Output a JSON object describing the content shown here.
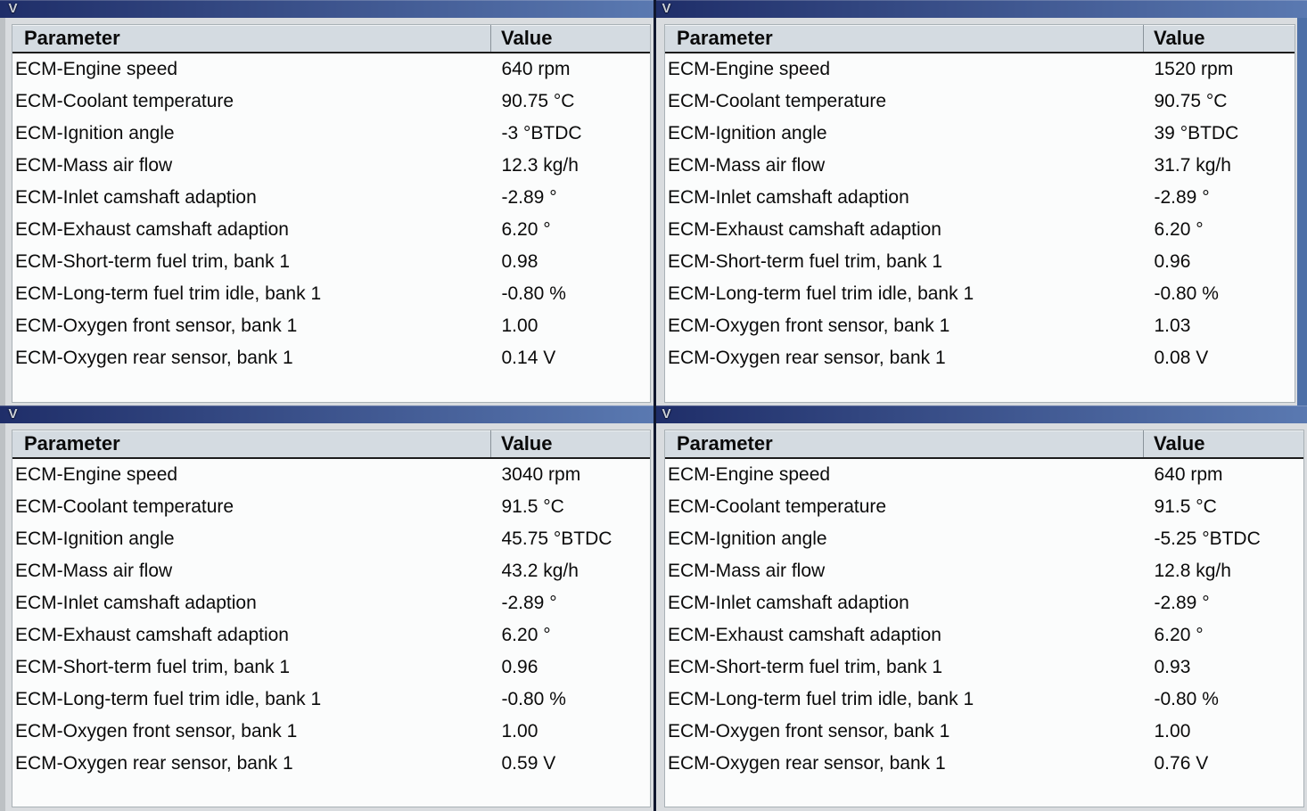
{
  "window": {
    "icon_glyph": "V"
  },
  "table": {
    "columns": {
      "parameter": "Parameter",
      "value": "Value"
    },
    "parameters": [
      "ECM-Engine speed",
      "ECM-Coolant temperature",
      "ECM-Ignition angle",
      "ECM-Mass air flow",
      "ECM-Inlet camshaft adaption",
      "ECM-Exhaust camshaft adaption",
      "ECM-Short-term fuel trim, bank 1",
      "ECM-Long-term fuel trim idle, bank 1",
      "ECM-Oxygen front sensor, bank 1",
      "ECM-Oxygen rear sensor, bank 1"
    ]
  },
  "panels": [
    {
      "name": "top-left",
      "values": [
        "640 rpm",
        "90.75 °C",
        "-3 °BTDC",
        "12.3 kg/h",
        "-2.89 °",
        "6.20 °",
        "0.98",
        "-0.80 %",
        "1.00",
        "0.14 V"
      ]
    },
    {
      "name": "top-right",
      "values": [
        "1520 rpm",
        "90.75 °C",
        "39 °BTDC",
        "31.7 kg/h",
        "-2.89 °",
        "6.20 °",
        "0.96",
        "-0.80 %",
        "1.03",
        "0.08 V"
      ]
    },
    {
      "name": "bottom-left",
      "values": [
        "3040 rpm",
        "91.5 °C",
        "45.75 °BTDC",
        "43.2 kg/h",
        "-2.89 °",
        "6.20 °",
        "0.96",
        "-0.80 %",
        "1.00",
        "0.59 V"
      ]
    },
    {
      "name": "bottom-right",
      "values": [
        "640 rpm",
        "91.5 °C",
        "-5.25 °BTDC",
        "12.8 kg/h",
        "-2.89 °",
        "6.20 °",
        "0.93",
        "-0.80 %",
        "1.00",
        "0.76 V"
      ]
    }
  ],
  "colors": {
    "titlebar_gradient_start": "#1f2e69",
    "titlebar_gradient_end": "#5a79b1",
    "header_bg": "#d4dbe1",
    "frame_bg": "#d9dcdf",
    "table_bg": "#fbfcfc",
    "right_frame_blue": "#4d6fa7",
    "panel_divider_dark": "#10172e",
    "text": "#0b0b0b"
  }
}
